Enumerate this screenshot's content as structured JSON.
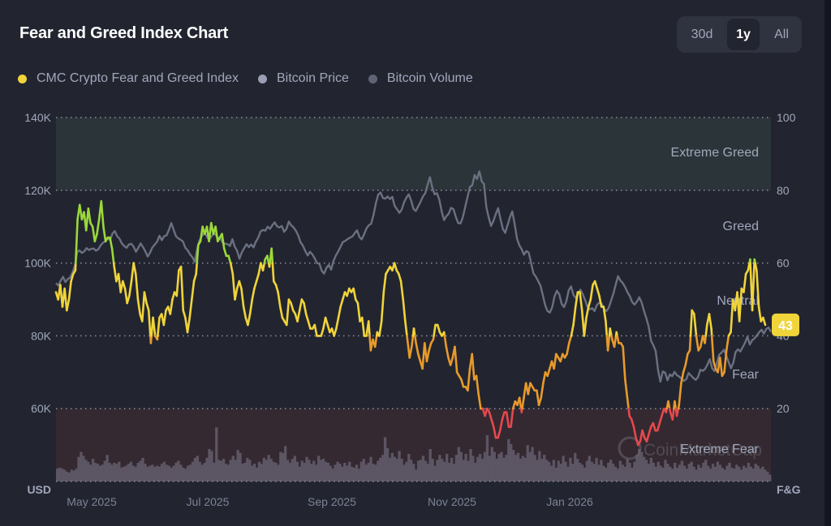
{
  "header": {
    "title": "Fear and Greed Index Chart",
    "ranges": [
      {
        "label": "30d",
        "active": false
      },
      {
        "label": "1y",
        "active": true
      },
      {
        "label": "All",
        "active": false
      }
    ]
  },
  "legend": [
    {
      "label": "CMC Crypto Fear and Greed Index",
      "color": "#f0d43a"
    },
    {
      "label": "Bitcoin Price",
      "color": "#9a9fb3"
    },
    {
      "label": "Bitcoin Volume",
      "color": "#5f6475"
    }
  ],
  "colors": {
    "extreme_greed": "#9bd83a",
    "greed": "#9bd83a",
    "neutral": "#f0d43a",
    "fear": "#e89a2a",
    "extreme_fear": "#e5484d",
    "price": "#6b7081",
    "volume": "#5c5563",
    "badge_bg": "#f0d43a",
    "zone_greed_bg": "#2b3539",
    "zone_fear_bg": "#342931"
  },
  "watermark": "CoinMarketCap",
  "chart_data": {
    "type": "line",
    "title": "Fear and Greed Index Chart",
    "x_ticks": [
      "May 2025",
      "Jul 2025",
      "Sep 2025",
      "Nov 2025",
      "Jan 2026"
    ],
    "left_axis": {
      "label": "USD",
      "ticks": [
        "140K",
        "120K",
        "100K",
        "80K",
        "60K"
      ],
      "range": [
        40000,
        140000
      ]
    },
    "right_axis": {
      "label": "F&G",
      "ticks": [
        "100",
        "80",
        "60",
        "40",
        "20"
      ],
      "range": [
        0,
        100
      ]
    },
    "zones": [
      {
        "label": "Extreme Greed",
        "from": 80,
        "to": 100
      },
      {
        "label": "Greed",
        "from": 60,
        "to": 80
      },
      {
        "label": "Neutral",
        "from": 40,
        "to": 60
      },
      {
        "label": "Fear",
        "from": 20,
        "to": 40
      },
      {
        "label": "Extreme Fear",
        "from": 0,
        "to": 20
      }
    ],
    "current_value": 43,
    "grid": true,
    "legend_position": "top-left",
    "x_range": [
      "2025-04-12",
      "2026-02-10"
    ],
    "series": [
      {
        "name": "CMC Crypto Fear and Greed Index",
        "axis": "right",
        "values": [
          52,
          50,
          54,
          48,
          53,
          47,
          50,
          55,
          57,
          58,
          72,
          76,
          72,
          74,
          69,
          75,
          71,
          70,
          66,
          68,
          72,
          77,
          70,
          66,
          67,
          67,
          64,
          59,
          55,
          57,
          52,
          55,
          53,
          49,
          51,
          55,
          60,
          57,
          50,
          46,
          44,
          52,
          49,
          47,
          38,
          45,
          40,
          39,
          45,
          46,
          43,
          47,
          48,
          46,
          50,
          52,
          51,
          58,
          59,
          47,
          45,
          41,
          45,
          50,
          55,
          57,
          65,
          66,
          70,
          68,
          70,
          66,
          71,
          68,
          70,
          66,
          67,
          68,
          64,
          62,
          62,
          60,
          57,
          50,
          53,
          55,
          53,
          48,
          45,
          43,
          46,
          50,
          53,
          55,
          57,
          60,
          58,
          61,
          62,
          59,
          64,
          55,
          54,
          52,
          48,
          45,
          44,
          43,
          50,
          49,
          47,
          46,
          44,
          47,
          50,
          49,
          46,
          44,
          42,
          42,
          43,
          40,
          40,
          40,
          42,
          45,
          43,
          41,
          42,
          40,
          42,
          45,
          48,
          50,
          52,
          51,
          53,
          52,
          53,
          50,
          49,
          44,
          45,
          40,
          40,
          44,
          36,
          39,
          37,
          41,
          40,
          44,
          52,
          57,
          58,
          59,
          58,
          60,
          58,
          57,
          55,
          50,
          44,
          39,
          34,
          37,
          42,
          38,
          35,
          33,
          31,
          38,
          33,
          36,
          38,
          39,
          43,
          43,
          41,
          40,
          41,
          37,
          34,
          32,
          34,
          37,
          30,
          29,
          28,
          26,
          26,
          25,
          31,
          35,
          28,
          29,
          24,
          20,
          20,
          18,
          20,
          19,
          17,
          15,
          12,
          12,
          14,
          17,
          19,
          19,
          15,
          15,
          20,
          22,
          21,
          23,
          19,
          23,
          27,
          24,
          27,
          26,
          25,
          25,
          21,
          23,
          27,
          30,
          29,
          31,
          33,
          31,
          35,
          34,
          33,
          35,
          34,
          35,
          38,
          40,
          43,
          48,
          52,
          52,
          47,
          40,
          45,
          48,
          50,
          54,
          55,
          53,
          51,
          48,
          48,
          44,
          36,
          42,
          39,
          37,
          41,
          38,
          38,
          37,
          28,
          23,
          18,
          17,
          15,
          12,
          10,
          11,
          14,
          12,
          11,
          13,
          15,
          16,
          14,
          14,
          16,
          18,
          20,
          19,
          22,
          19,
          17,
          22,
          18,
          21,
          27,
          30,
          32,
          35,
          36,
          47,
          46,
          40,
          36,
          37,
          40,
          38,
          43,
          46,
          42,
          33,
          31,
          30,
          34,
          29,
          30,
          36,
          40,
          41,
          50,
          47,
          52,
          44,
          53,
          52,
          57,
          58,
          61,
          47,
          61,
          58,
          48,
          44,
          45,
          43
        ]
      },
      {
        "name": "Bitcoin Price",
        "axis": "left",
        "values": [
          94500,
          93800,
          95200,
          96200,
          94800,
          95600,
          96000,
          97400,
          99200,
          103000,
          103500,
          102800,
          103200,
          104100,
          103600,
          103900,
          104000,
          103400,
          103800,
          104900,
          105600,
          106000,
          106800,
          106300,
          108100,
          108800,
          107400,
          106700,
          105400,
          104700,
          104200,
          105100,
          105300,
          104500,
          103100,
          104200,
          105400,
          104400,
          103200,
          101800,
          102900,
          104300,
          105100,
          105900,
          107500,
          106300,
          107400,
          107600,
          109100,
          111000,
          109200,
          107400,
          106800,
          106400,
          105900,
          104200,
          103500,
          102400,
          101600,
          100300,
          103800,
          106200,
          107400,
          108300,
          107500,
          106300,
          107200,
          108100,
          107700,
          106800,
          106600,
          105500,
          105300,
          105200,
          104700,
          106600,
          104500,
          103400,
          101200,
          102900,
          104100,
          105200,
          104400,
          105100,
          104300,
          105900,
          107000,
          108700,
          109100,
          108900,
          110000,
          109400,
          110400,
          111200,
          110100,
          109800,
          110200,
          108600,
          109400,
          111400,
          110400,
          109800,
          108900,
          107600,
          105700,
          104800,
          103300,
          102100,
          103100,
          102400,
          101300,
          100000,
          99800,
          97900,
          97100,
          98700,
          99500,
          98200,
          100600,
          102100,
          103200,
          104500,
          105800,
          106100,
          106600,
          107000,
          107300,
          108200,
          109000,
          107200,
          106500,
          107900,
          109500,
          110400,
          110800,
          113200,
          116400,
          118800,
          119400,
          117900,
          117700,
          118300,
          117600,
          118200,
          115700,
          114800,
          113800,
          114700,
          116700,
          118000,
          118900,
          117200,
          114900,
          114300,
          115600,
          116800,
          118300,
          119200,
          121500,
          123600,
          120800,
          118900,
          119200,
          117400,
          114200,
          111800,
          112900,
          113600,
          115200,
          114800,
          112700,
          111000,
          110900,
          112600,
          115400,
          118200,
          120900,
          121400,
          124200,
          123100,
          125200,
          122500,
          121700,
          115300,
          112500,
          110200,
          111600,
          113500,
          115100,
          112100,
          109400,
          108300,
          110400,
          112600,
          114200,
          110800,
          106800,
          104900,
          103800,
          102300,
          103300,
          102900,
          100100,
          97200,
          96300,
          95100,
          93800,
          91200,
          88400,
          86800,
          86400,
          87900,
          90900,
          92400,
          91400,
          88800,
          87900,
          89500,
          92500,
          93600,
          91300,
          90400,
          91600,
          92700,
          91400,
          89800,
          88000,
          87300,
          87600,
          86800,
          88500,
          89100,
          88900,
          87400,
          86800,
          87700,
          89600,
          91600,
          94100,
          96400,
          95200,
          94500,
          93400,
          92000,
          90900,
          89300,
          88600,
          89400,
          90600,
          89200,
          86900,
          84900,
          82600,
          78700,
          77400,
          75800,
          70600,
          67400,
          70200,
          69900,
          67800,
          69400,
          68900,
          70100,
          69200,
          68800,
          68200,
          67600,
          68100,
          69800,
          69100,
          68400,
          67900,
          68700,
          70700,
          70400,
          70900,
          72100,
          73600,
          71100,
          70300,
          72500,
          74800,
          75400,
          76200,
          74600,
          72800,
          71100,
          72600,
          75600,
          76300,
          75700,
          76900,
          78100,
          79800,
          77600,
          78800,
          79300,
          80100,
          81000,
          81700,
          80600,
          81900,
          82300,
          81100
        ]
      },
      {
        "name": "Bitcoin Volume",
        "axis": "left",
        "relative_values": [
          0.13,
          0.14,
          0.13,
          0.12,
          0.1,
          0.09,
          0.12,
          0.11,
          0.13,
          0.25,
          0.3,
          0.26,
          0.22,
          0.2,
          0.17,
          0.23,
          0.19,
          0.18,
          0.16,
          0.17,
          0.21,
          0.27,
          0.19,
          0.17,
          0.19,
          0.18,
          0.2,
          0.14,
          0.15,
          0.16,
          0.18,
          0.2,
          0.16,
          0.15,
          0.19,
          0.21,
          0.24,
          0.18,
          0.15,
          0.16,
          0.17,
          0.15,
          0.16,
          0.15,
          0.18,
          0.2,
          0.17,
          0.16,
          0.14,
          0.16,
          0.19,
          0.21,
          0.17,
          0.14,
          0.13,
          0.16,
          0.17,
          0.2,
          0.24,
          0.26,
          0.2,
          0.17,
          0.19,
          0.24,
          0.33,
          0.31,
          0.19,
          0.55,
          0.22,
          0.21,
          0.23,
          0.18,
          0.17,
          0.22,
          0.26,
          0.22,
          0.32,
          0.29,
          0.18,
          0.19,
          0.24,
          0.22,
          0.16,
          0.18,
          0.14,
          0.2,
          0.18,
          0.24,
          0.22,
          0.27,
          0.23,
          0.2,
          0.19,
          0.17,
          0.3,
          0.29,
          0.36,
          0.22,
          0.19,
          0.23,
          0.26,
          0.2,
          0.15,
          0.21,
          0.19,
          0.25,
          0.22,
          0.18,
          0.21,
          0.17,
          0.26,
          0.22,
          0.23,
          0.2,
          0.19,
          0.16,
          0.13,
          0.17,
          0.2,
          0.18,
          0.15,
          0.19,
          0.16,
          0.2,
          0.15,
          0.14,
          0.17,
          0.13,
          0.2,
          0.23,
          0.17,
          0.19,
          0.25,
          0.18,
          0.17,
          0.21,
          0.24,
          0.27,
          0.45,
          0.34,
          0.24,
          0.29,
          0.25,
          0.23,
          0.31,
          0.23,
          0.17,
          0.2,
          0.28,
          0.22,
          0.18,
          0.12,
          0.21,
          0.22,
          0.26,
          0.21,
          0.18,
          0.33,
          0.23,
          0.16,
          0.22,
          0.27,
          0.23,
          0.2,
          0.28,
          0.19,
          0.24,
          0.18,
          0.27,
          0.35,
          0.3,
          0.22,
          0.28,
          0.21,
          0.33,
          0.26,
          0.19,
          0.25,
          0.28,
          0.23,
          0.3,
          0.47,
          0.26,
          0.35,
          0.3,
          0.23,
          0.28,
          0.3,
          0.24,
          0.27,
          0.43,
          0.38,
          0.32,
          0.27,
          0.29,
          0.23,
          0.26,
          0.24,
          0.37,
          0.3,
          0.35,
          0.27,
          0.22,
          0.31,
          0.23,
          0.27,
          0.22,
          0.2,
          0.16,
          0.22,
          0.14,
          0.21,
          0.18,
          0.26,
          0.2,
          0.15,
          0.24,
          0.18,
          0.29,
          0.23,
          0.19,
          0.17,
          0.14,
          0.21,
          0.26,
          0.2,
          0.18,
          0.24,
          0.17,
          0.22,
          0.16,
          0.14,
          0.19,
          0.22,
          0.18,
          0.15,
          0.13,
          0.21,
          0.17,
          0.15,
          0.23,
          0.19,
          0.14,
          0.2,
          0.27,
          0.33,
          0.3,
          0.25,
          0.22,
          0.18,
          0.24,
          0.19,
          0.15,
          0.2,
          0.16,
          0.14,
          0.22,
          0.18,
          0.15,
          0.13,
          0.19,
          0.14,
          0.17,
          0.21,
          0.16,
          0.13,
          0.18,
          0.2,
          0.15,
          0.12,
          0.17,
          0.14,
          0.19,
          0.22,
          0.16,
          0.13,
          0.18,
          0.15,
          0.2,
          0.17,
          0.14,
          0.12,
          0.16,
          0.19,
          0.14,
          0.13,
          0.17,
          0.15,
          0.12,
          0.16,
          0.14,
          0.19,
          0.15,
          0.13,
          0.18,
          0.16,
          0.13,
          0.15,
          0.12,
          0.1,
          0.07
        ]
      }
    ]
  }
}
